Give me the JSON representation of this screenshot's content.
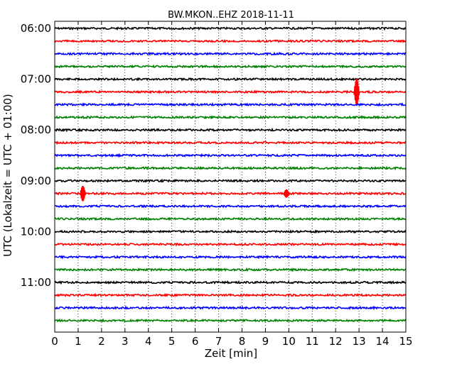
{
  "chart_data": {
    "type": "line",
    "title": "BW.MKON..EHZ 2018-11-11",
    "xlabel": "Zeit  [min]",
    "ylabel": "UTC (Lokalzeit = UTC + 01:00)",
    "xlim": [
      0,
      15
    ],
    "x_ticks": [
      "0",
      "1",
      "2",
      "3",
      "4",
      "5",
      "6",
      "7",
      "8",
      "9",
      "10",
      "11",
      "12",
      "13",
      "14",
      "15"
    ],
    "y_ticks": [
      "06:00",
      "07:00",
      "08:00",
      "09:00",
      "10:00",
      "11:00"
    ],
    "grid": "vertical dotted",
    "trace_colors": [
      "#000000",
      "#ff0000",
      "#0000ff",
      "#008000"
    ],
    "trace_interval_minutes": 15,
    "traces": [
      {
        "start": "06:00",
        "color": "black"
      },
      {
        "start": "06:15",
        "color": "red"
      },
      {
        "start": "06:30",
        "color": "blue"
      },
      {
        "start": "06:45",
        "color": "green"
      },
      {
        "start": "07:00",
        "color": "black"
      },
      {
        "start": "07:15",
        "color": "red",
        "events": [
          {
            "minute": 12.9,
            "amplitude": "large"
          }
        ]
      },
      {
        "start": "07:30",
        "color": "blue"
      },
      {
        "start": "07:45",
        "color": "green"
      },
      {
        "start": "08:00",
        "color": "black"
      },
      {
        "start": "08:15",
        "color": "red"
      },
      {
        "start": "08:30",
        "color": "blue"
      },
      {
        "start": "08:45",
        "color": "green"
      },
      {
        "start": "09:00",
        "color": "black"
      },
      {
        "start": "09:15",
        "color": "red",
        "events": [
          {
            "minute": 1.2,
            "amplitude": "medium"
          },
          {
            "minute": 9.9,
            "amplitude": "small"
          }
        ]
      },
      {
        "start": "09:30",
        "color": "blue"
      },
      {
        "start": "09:45",
        "color": "green"
      },
      {
        "start": "10:00",
        "color": "black"
      },
      {
        "start": "10:15",
        "color": "red"
      },
      {
        "start": "10:30",
        "color": "blue"
      },
      {
        "start": "10:45",
        "color": "green"
      },
      {
        "start": "11:00",
        "color": "black"
      },
      {
        "start": "11:15",
        "color": "red"
      },
      {
        "start": "11:30",
        "color": "blue"
      },
      {
        "start": "11:45",
        "color": "green"
      }
    ]
  }
}
